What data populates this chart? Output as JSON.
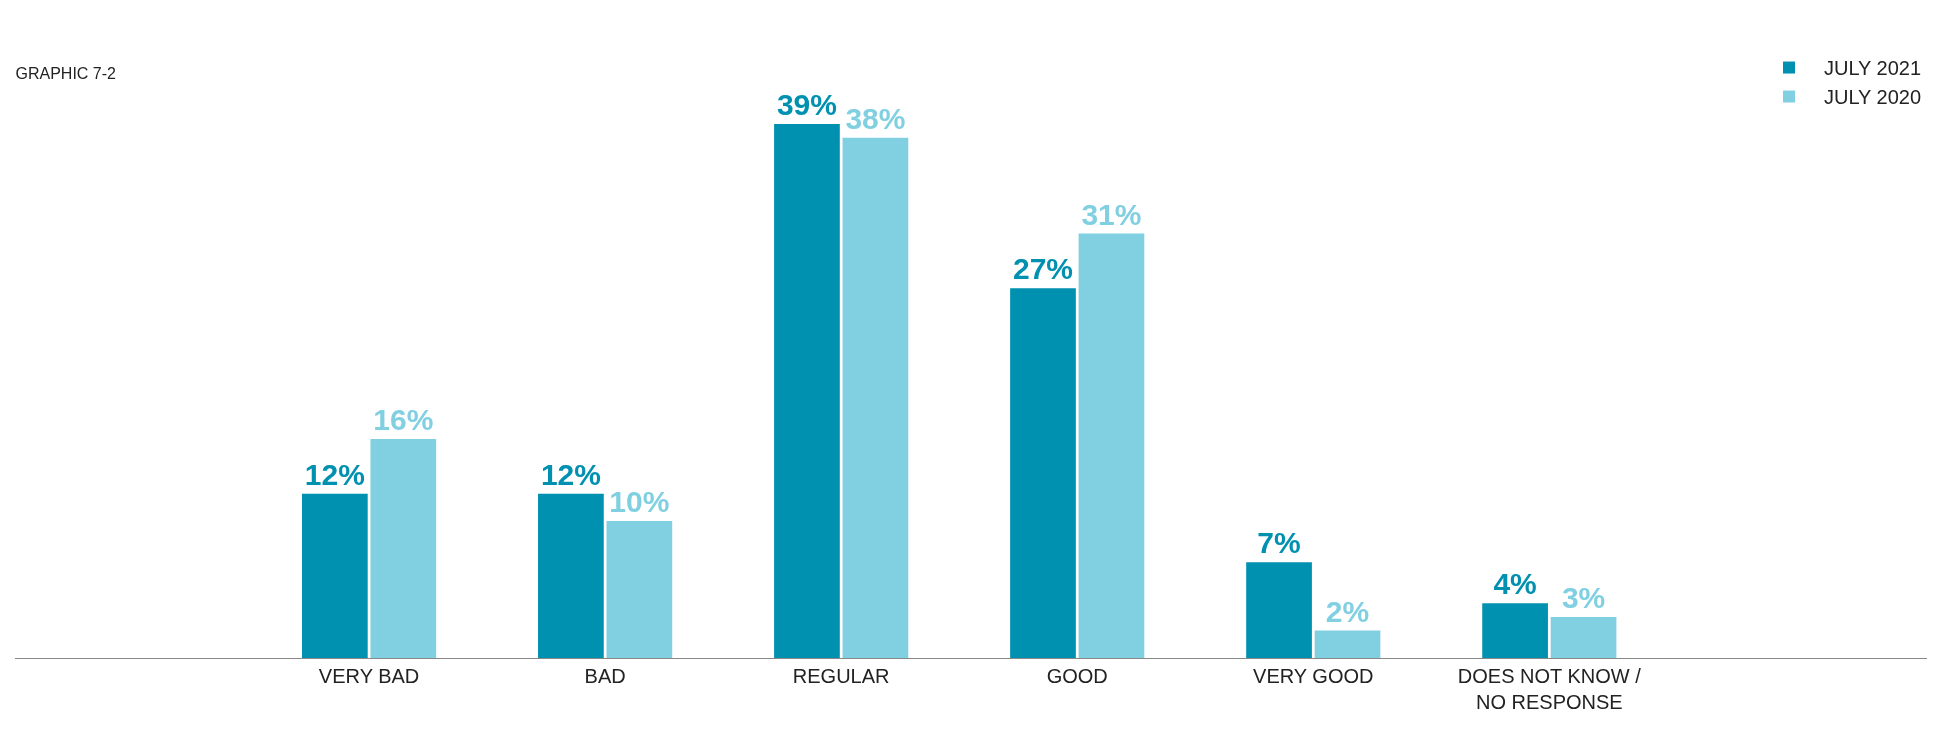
{
  "chart_data": {
    "type": "bar",
    "title": "GRAPHIC 7-2",
    "categories": [
      "VERY BAD",
      "BAD",
      "REGULAR",
      "GOOD",
      "VERY GOOD",
      "DOES NOT KNOW /\nNO RESPONSE"
    ],
    "series": [
      {
        "name": "JULY 2021",
        "color": "#0090b0",
        "values": [
          12,
          12,
          39,
          27,
          7,
          4
        ],
        "value_labels": [
          "12%",
          "12%",
          "39%",
          "27%",
          "7%",
          "4%"
        ]
      },
      {
        "name": "JULY 2020",
        "color": "#80d0e2",
        "values": [
          16,
          10,
          38,
          31,
          2,
          3
        ],
        "value_labels": [
          "16%",
          "10%",
          "38%",
          "31%",
          "2%",
          "3%"
        ]
      }
    ],
    "legend": "top right"
  }
}
